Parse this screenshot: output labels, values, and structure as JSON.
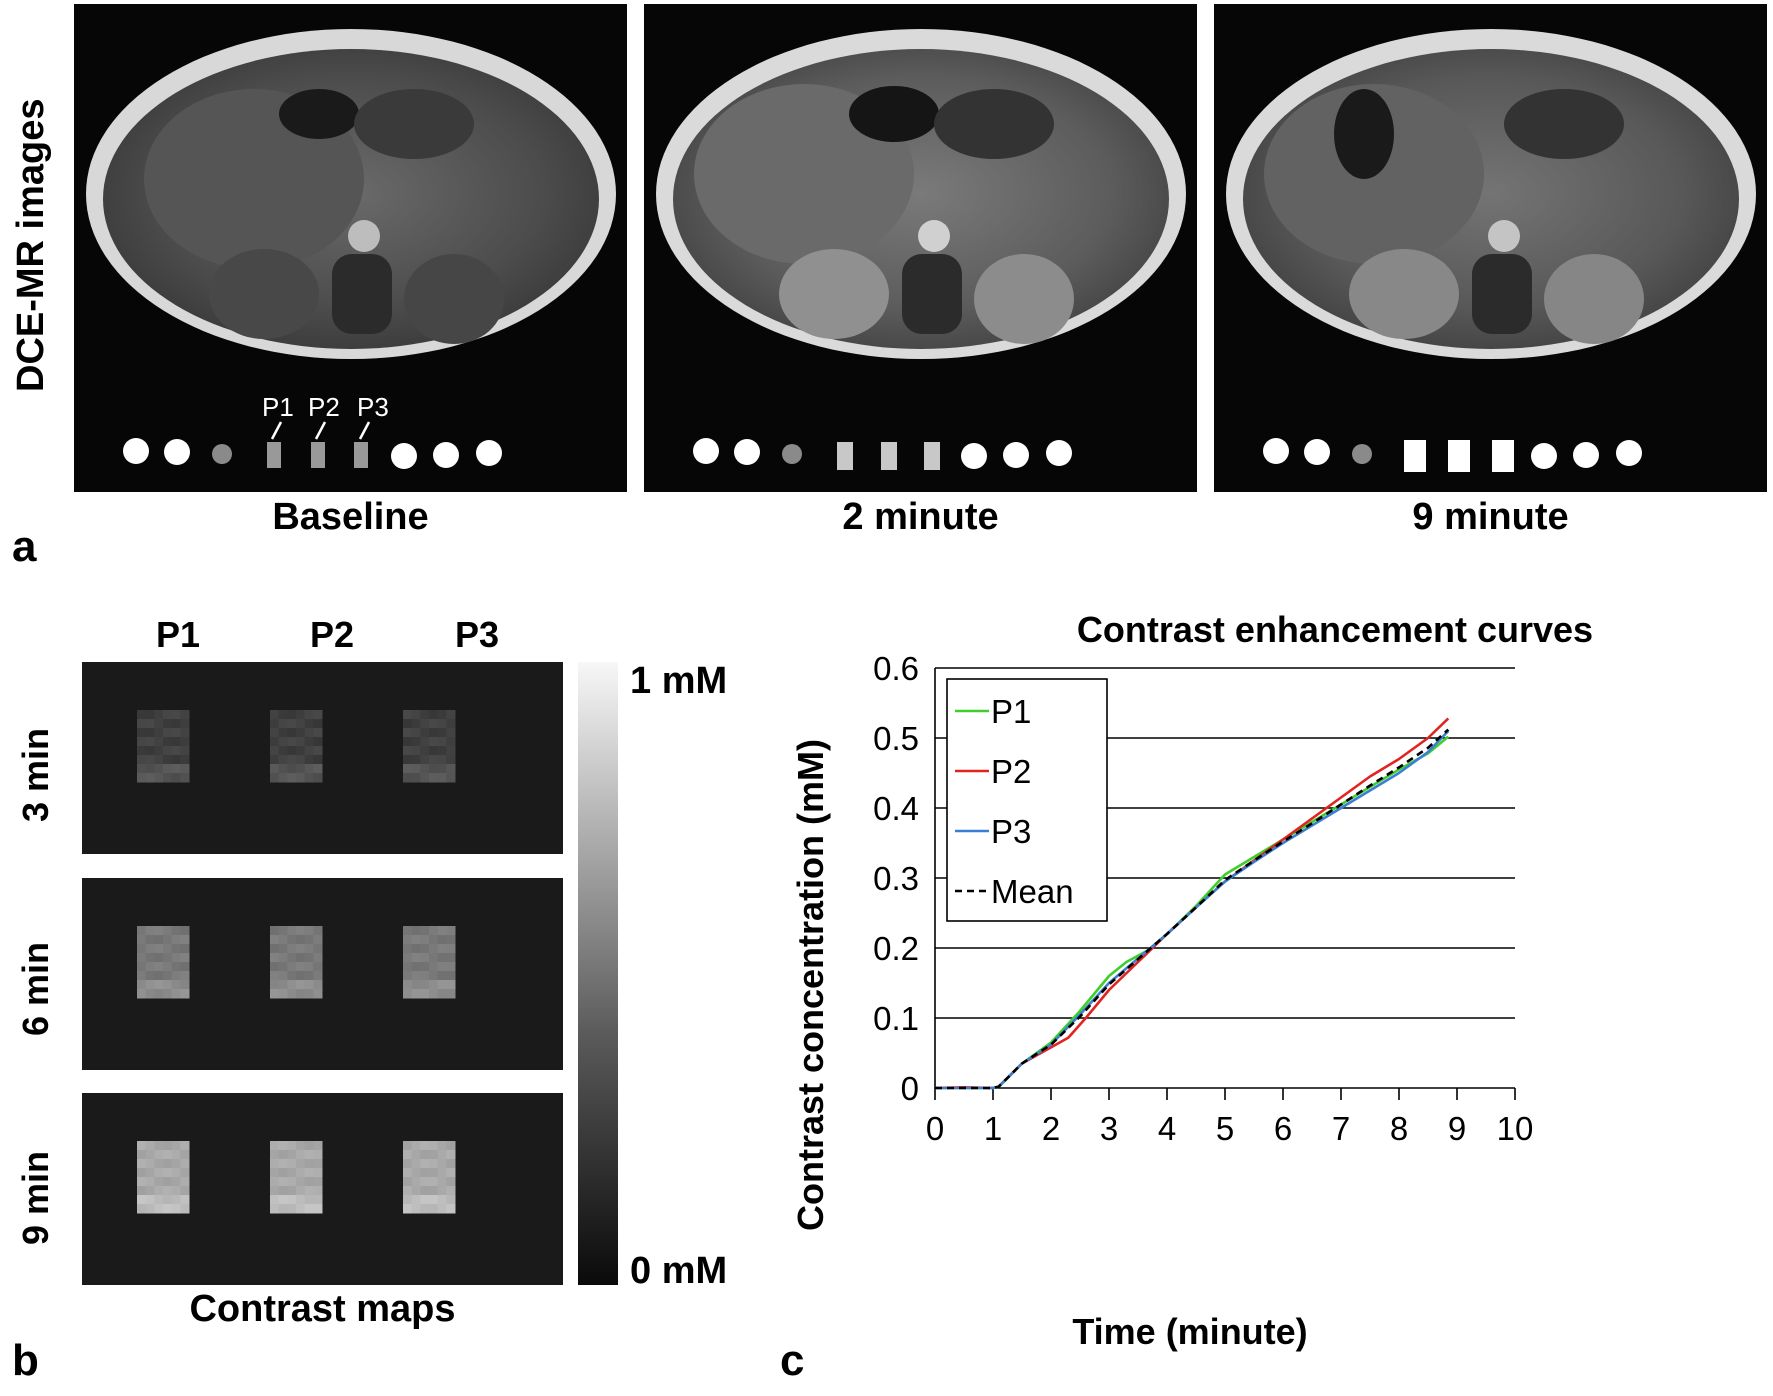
{
  "panel_a": {
    "letter": "a",
    "row_label": "DCE-MR images",
    "phantom_labels": [
      "P1",
      "P2",
      "P3"
    ],
    "captions": [
      "Baseline",
      "2 minute",
      "9 minute"
    ]
  },
  "panel_b": {
    "letter": "b",
    "columns": [
      "P1",
      "P2",
      "P3"
    ],
    "rows": [
      "3 min",
      "6 min",
      "9 min"
    ],
    "colorbar_max": "1 mM",
    "colorbar_min": "0 mM",
    "caption": "Contrast maps",
    "brightness": [
      0.18,
      0.45,
      0.68
    ]
  },
  "panel_c": {
    "letter": "c"
  },
  "chart_data": {
    "type": "line",
    "title": "Contrast enhancement curves",
    "xlabel": "Time (minute)",
    "ylabel": "Contrast concentration (mM)",
    "xlim": [
      0,
      10
    ],
    "ylim": [
      0,
      0.6
    ],
    "xticks": [
      "0",
      "1",
      "2",
      "3",
      "4",
      "5",
      "6",
      "7",
      "8",
      "9",
      "10"
    ],
    "yticks": [
      "0",
      "0.1",
      "0.2",
      "0.3",
      "0.4",
      "0.5",
      "0.6"
    ],
    "grid": "horizontal",
    "legend_position": "top-left",
    "series": [
      {
        "name": "P1",
        "color": "#3fcf2a",
        "style": "solid",
        "x": [
          0,
          0.5,
          1.0,
          1.1,
          1.5,
          2.0,
          2.5,
          3.0,
          3.3,
          3.7,
          4.0,
          4.5,
          5.0,
          5.5,
          6.0,
          6.5,
          7.0,
          7.5,
          8.0,
          8.5,
          8.85
        ],
        "y": [
          0,
          0,
          0,
          0.002,
          0.035,
          0.065,
          0.11,
          0.16,
          0.18,
          0.198,
          0.22,
          0.26,
          0.305,
          0.33,
          0.355,
          0.38,
          0.405,
          0.43,
          0.455,
          0.478,
          0.502
        ]
      },
      {
        "name": "P2",
        "color": "#e2241f",
        "style": "solid",
        "x": [
          0,
          0.5,
          1.0,
          1.1,
          1.5,
          2.0,
          2.3,
          2.6,
          3.0,
          3.5,
          4.0,
          4.5,
          5.0,
          5.5,
          6.0,
          6.5,
          7.0,
          7.5,
          8.0,
          8.5,
          8.85
        ],
        "y": [
          0,
          0.001,
          0,
          0.002,
          0.035,
          0.058,
          0.072,
          0.1,
          0.14,
          0.18,
          0.22,
          0.258,
          0.295,
          0.325,
          0.355,
          0.385,
          0.415,
          0.445,
          0.47,
          0.5,
          0.528
        ]
      },
      {
        "name": "P3",
        "color": "#3a7fd5",
        "style": "solid",
        "x": [
          0,
          0.5,
          1.0,
          1.1,
          1.5,
          2.0,
          2.5,
          3.0,
          3.5,
          4.0,
          4.5,
          5.0,
          5.5,
          6.0,
          6.5,
          7.0,
          7.5,
          8.0,
          8.5,
          8.85
        ],
        "y": [
          0,
          0,
          0,
          0.002,
          0.035,
          0.062,
          0.105,
          0.15,
          0.185,
          0.22,
          0.258,
          0.295,
          0.323,
          0.35,
          0.375,
          0.4,
          0.425,
          0.45,
          0.48,
          0.51
        ]
      },
      {
        "name": "Mean",
        "color": "#000000",
        "style": "dashed",
        "x": [
          0,
          0.5,
          1.0,
          1.1,
          1.5,
          2.0,
          2.5,
          3.0,
          3.5,
          4.0,
          4.5,
          5.0,
          5.5,
          6.0,
          6.5,
          7.0,
          7.5,
          8.0,
          8.5,
          8.85
        ],
        "y": [
          0,
          0,
          0,
          0.002,
          0.035,
          0.062,
          0.102,
          0.148,
          0.184,
          0.22,
          0.258,
          0.297,
          0.325,
          0.352,
          0.378,
          0.405,
          0.432,
          0.458,
          0.486,
          0.512
        ]
      }
    ]
  }
}
